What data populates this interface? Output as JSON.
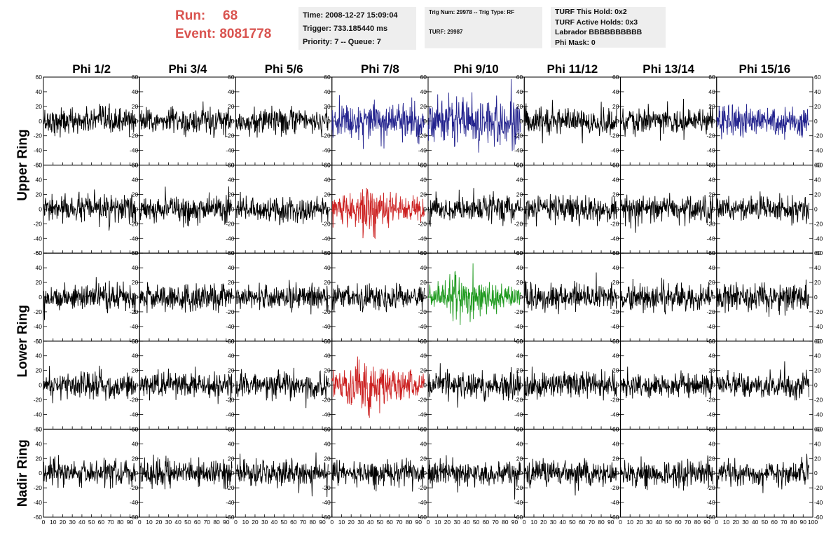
{
  "header": {
    "run_label": "Run:",
    "run_value": "68",
    "event_label": "Event:",
    "event_value": "8081778",
    "time_line": "Time: 2008-12-27 15:09:04",
    "trigger_line": "Trigger: 733.185440 ms",
    "priority_line": "Priority: 7 -- Queue: 7",
    "trig_line": "Trig Num: 29978 -- Trig Type: RF",
    "turf_line": "TURF: 29987",
    "turf_hold_line": "TURF This Hold: 0x2",
    "turf_active_line": "TURF Active Holds: 0x3",
    "labrador_line": "Labrador BBBBBBBBBB",
    "phimask_line": "Phi Mask: 0"
  },
  "chart_data": {
    "type": "line",
    "columns": [
      "Phi 1/2",
      "Phi 3/4",
      "Phi 5/6",
      "Phi 7/8",
      "Phi 9/10",
      "Phi 11/12",
      "Phi 13/14",
      "Phi 15/16"
    ],
    "rows": [
      {
        "group": "Upper Ring",
        "rows": 2
      },
      {
        "group": "Lower Ring",
        "rows": 2
      },
      {
        "group": "Nadir Ring",
        "rows": 1
      }
    ],
    "ylim": [
      -60,
      60
    ],
    "yticks": [
      -60,
      -40,
      -20,
      0,
      20,
      40,
      60
    ],
    "xlim": [
      0,
      100
    ],
    "xticks": [
      0,
      10,
      20,
      30,
      40,
      50,
      60,
      70,
      80,
      90,
      100
    ],
    "xtick_labels": [
      "0",
      "10",
      "20",
      "30",
      "40",
      "50",
      "60",
      "70",
      "80",
      "90"
    ],
    "last_xtick_label": "100",
    "colors": {
      "default": "#000000",
      "blue": "#23238e",
      "red": "#cc2222",
      "green": "#1f9a1f"
    },
    "highlighted": [
      {
        "row": 0,
        "col": 3,
        "color": "blue",
        "amplitude": 28
      },
      {
        "row": 0,
        "col": 4,
        "color": "blue",
        "amplitude": 38
      },
      {
        "row": 0,
        "col": 7,
        "color": "blue",
        "amplitude": 22
      },
      {
        "row": 1,
        "col": 3,
        "color": "red",
        "amplitude": 32
      },
      {
        "row": 2,
        "col": 4,
        "color": "green",
        "amplitude": 30
      },
      {
        "row": 3,
        "col": 3,
        "color": "red",
        "amplitude": 34
      }
    ],
    "default_amplitude": 20,
    "samples_per_trace": 260
  }
}
